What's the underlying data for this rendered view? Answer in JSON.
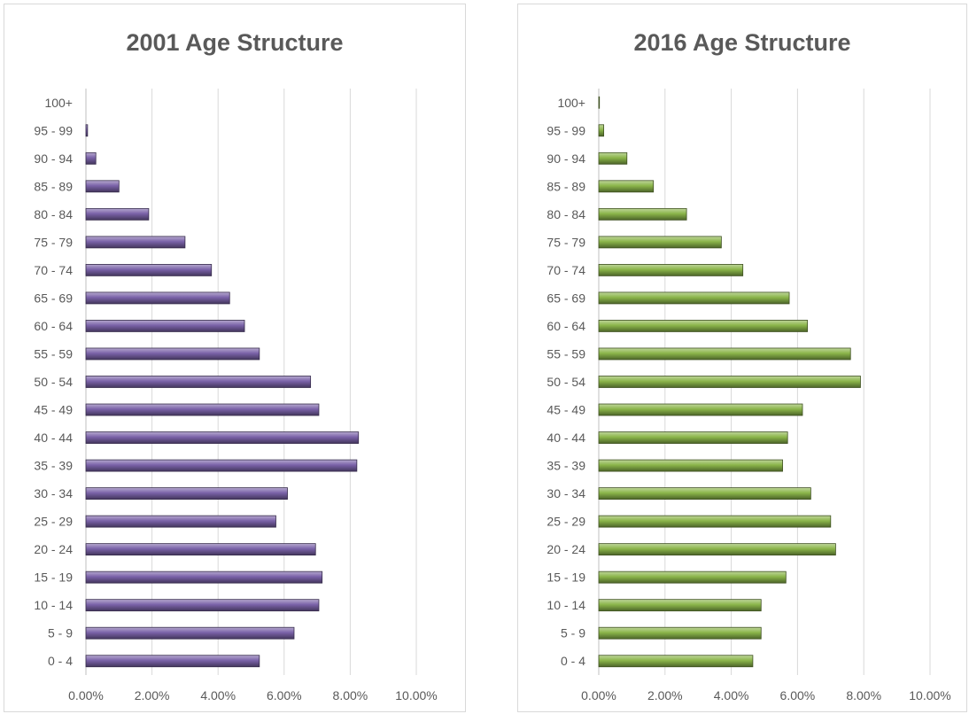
{
  "chart_data": [
    {
      "type": "bar",
      "orientation": "horizontal",
      "title": "2001 Age Structure",
      "categories": [
        "100+",
        "95 - 99",
        "90 - 94",
        "85 - 89",
        "80 - 84",
        "75 - 79",
        "70 - 74",
        "65 - 69",
        "60 - 64",
        "55 - 59",
        "50 - 54",
        "45 - 49",
        "40 - 44",
        "35 - 39",
        "30 - 34",
        "25 - 29",
        "20 - 24",
        "15 - 19",
        "10 - 14",
        "5 - 9",
        "0 - 4"
      ],
      "values": [
        0.0,
        0.05,
        0.3,
        1.0,
        1.9,
        3.0,
        3.8,
        4.35,
        4.8,
        5.25,
        6.8,
        7.05,
        8.25,
        8.2,
        6.1,
        5.75,
        6.95,
        7.15,
        7.05,
        6.3,
        5.25
      ],
      "x_ticks": [
        "0.00%",
        "2.00%",
        "4.00%",
        "6.00%",
        "8.00%",
        "10.00%"
      ],
      "xlim": [
        0,
        10
      ],
      "xlabel": "",
      "ylabel": "",
      "grid": "vertical",
      "color": "#7a62a8"
    },
    {
      "type": "bar",
      "orientation": "horizontal",
      "title": "2016 Age Structure",
      "categories": [
        "100+",
        "95 - 99",
        "90 - 94",
        "85 - 89",
        "80 - 84",
        "75 - 79",
        "70 - 74",
        "65 - 69",
        "60 - 64",
        "55 - 59",
        "50 - 54",
        "45 - 49",
        "40 - 44",
        "35 - 39",
        "30 - 34",
        "25 - 29",
        "20 - 24",
        "15 - 19",
        "10 - 14",
        "5 - 9",
        "0 - 4"
      ],
      "values": [
        0.02,
        0.15,
        0.85,
        1.65,
        2.65,
        3.7,
        4.35,
        5.75,
        6.3,
        7.6,
        7.9,
        6.15,
        5.7,
        5.55,
        6.4,
        7.0,
        7.15,
        5.65,
        4.9,
        4.9,
        4.65
      ],
      "x_ticks": [
        "0.00%",
        "2.00%",
        "4.00%",
        "6.00%",
        "8.00%",
        "10.00%"
      ],
      "xlim": [
        0,
        10
      ],
      "xlabel": "",
      "ylabel": "",
      "grid": "vertical",
      "color": "#8bb54a"
    }
  ]
}
